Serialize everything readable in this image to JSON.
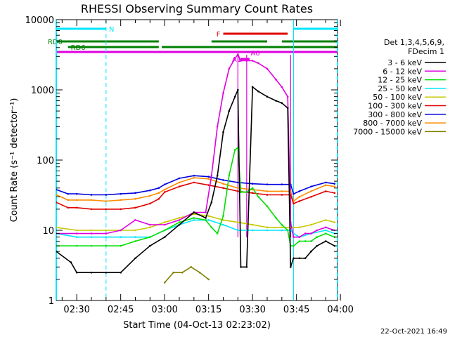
{
  "chart_data": {
    "type": "line",
    "title": "RHESSI Observing Summary Count Rates",
    "xlabel": "Start Time (04-Oct-13 02:23:02)",
    "ylabel": "Count Rate (s⁻¹ detector⁻¹)",
    "yscale": "log",
    "ylim": [
      1,
      10000
    ],
    "xlim": [
      "02:23",
      "03:59"
    ],
    "x_ticks": [
      "02:30",
      "02:45",
      "03:00",
      "03:15",
      "03:30",
      "03:45",
      "04:00"
    ],
    "y_ticks": [
      "1",
      "10",
      "100",
      "1000",
      "10000"
    ],
    "legend_title": [
      "Det 1,3,4,5,6,9,",
      "FDecim 1"
    ],
    "legend_position": "right",
    "footer": "22-Oct-2021 16:49",
    "colors": {
      "night": "#00e5ff",
      "flare": "#e00000",
      "rd0": "#008000",
      "rd6": "#008000",
      "attenuator": "#e000e0"
    },
    "bands": [
      {
        "label": "N",
        "color": "#00e5ff",
        "segments": [
          [
            "02:23",
            "02:40"
          ],
          [
            "03:44",
            "03:59"
          ]
        ]
      },
      {
        "label": "F",
        "color": "#e00000",
        "segments": [
          [
            "03:20",
            "03:42"
          ]
        ]
      },
      {
        "label": "RD0",
        "color": "#008000",
        "segments": [
          [
            "02:23",
            "02:58"
          ],
          [
            "03:16",
            "03:35"
          ],
          [
            "03:40",
            "03:59"
          ]
        ]
      },
      {
        "label": "RD6",
        "color": "#008000",
        "segments": [
          [
            "02:27",
            "02:58"
          ],
          [
            "02:59",
            "03:43"
          ],
          [
            "03:43",
            "03:59"
          ]
        ]
      },
      {
        "label": "A1",
        "color": "#e000e0",
        "segments": [
          [
            "02:23",
            "03:59"
          ]
        ]
      },
      {
        "label": "A0",
        "color": "#e000e0",
        "segments": [
          [
            "03:26",
            "03:29"
          ]
        ]
      }
    ],
    "night_markers": [
      "02:23",
      "02:40",
      "03:44",
      "03:59"
    ],
    "attenuator_markers": [
      "03:25",
      "03:28",
      "03:43"
    ],
    "series": [
      {
        "name": "3 - 6 keV",
        "color": "#000000",
        "x": [
          "02:23",
          "02:28",
          "02:30",
          "02:35",
          "02:40",
          "02:45",
          "02:50",
          "02:55",
          "03:00",
          "03:05",
          "03:10",
          "03:14",
          "03:16",
          "03:18",
          "03:20",
          "03:22",
          "03:24",
          "03:25",
          "03:26",
          "03:28",
          "03:30",
          "03:32",
          "03:35",
          "03:38",
          "03:40",
          "03:42",
          "03:43",
          "03:44",
          "03:46",
          "03:48",
          "03:50",
          "03:52",
          "03:55",
          "03:58"
        ],
        "y": [
          5,
          3.5,
          2.5,
          2.5,
          2.5,
          2.5,
          4,
          6,
          8,
          12,
          18,
          15,
          25,
          60,
          250,
          500,
          800,
          1000,
          3,
          3,
          1100,
          950,
          800,
          700,
          650,
          550,
          3,
          4,
          4,
          4,
          5,
          6,
          7,
          6
        ]
      },
      {
        "name": "6 - 12 keV",
        "color": "#e000e0",
        "x": [
          "02:23",
          "02:30",
          "02:35",
          "02:40",
          "02:45",
          "02:50",
          "02:55",
          "03:00",
          "03:05",
          "03:10",
          "03:14",
          "03:16",
          "03:18",
          "03:20",
          "03:22",
          "03:24",
          "03:25",
          "03:26",
          "03:28",
          "03:30",
          "03:32",
          "03:35",
          "03:38",
          "03:40",
          "03:42",
          "03:43",
          "03:44",
          "03:46",
          "03:48",
          "03:50",
          "03:52",
          "03:55",
          "03:58"
        ],
        "y": [
          9,
          9,
          9,
          9,
          10,
          14,
          12,
          12,
          14,
          18,
          18,
          60,
          300,
          900,
          2000,
          2800,
          3200,
          2600,
          2600,
          2600,
          2400,
          2000,
          1400,
          1100,
          800,
          13,
          8,
          8,
          9,
          9,
          10,
          11,
          10
        ]
      },
      {
        "name": "12 - 25 keV",
        "color": "#00e000",
        "x": [
          "02:23",
          "02:30",
          "02:35",
          "02:40",
          "02:45",
          "02:50",
          "02:55",
          "03:00",
          "03:05",
          "03:10",
          "03:14",
          "03:16",
          "03:18",
          "03:20",
          "03:22",
          "03:24",
          "03:25",
          "03:26",
          "03:28",
          "03:30",
          "03:32",
          "03:35",
          "03:38",
          "03:40",
          "03:42",
          "03:43",
          "03:44",
          "03:46",
          "03:48",
          "03:50",
          "03:52",
          "03:55",
          "03:58"
        ],
        "y": [
          6,
          6,
          6,
          6,
          6,
          7,
          8,
          10,
          13,
          15,
          14,
          11,
          9,
          16,
          60,
          140,
          150,
          35,
          35,
          40,
          30,
          22,
          15,
          12,
          10,
          6,
          6,
          7,
          7,
          7,
          8,
          9,
          8
        ]
      },
      {
        "name": "25 - 50 keV",
        "color": "#00e5ff",
        "x": [
          "02:23",
          "02:30",
          "02:35",
          "02:40",
          "02:45",
          "02:50",
          "02:55",
          "03:00",
          "03:05",
          "03:10",
          "03:15",
          "03:20",
          "03:25",
          "03:26",
          "03:28",
          "03:30",
          "03:35",
          "03:40",
          "03:43",
          "03:44",
          "03:46",
          "03:50",
          "03:55",
          "03:58"
        ],
        "y": [
          9,
          8,
          8,
          8,
          8,
          8,
          8,
          10,
          12,
          14,
          14,
          12,
          10,
          10,
          10,
          10,
          10,
          10,
          10,
          9,
          8,
          9,
          10,
          9
        ]
      },
      {
        "name": "50 - 100 keV",
        "color": "#c8c800",
        "x": [
          "02:23",
          "02:30",
          "02:35",
          "02:40",
          "02:45",
          "02:50",
          "02:55",
          "03:00",
          "03:05",
          "03:10",
          "03:15",
          "03:20",
          "03:25",
          "03:30",
          "03:35",
          "03:40",
          "03:43",
          "03:44",
          "03:46",
          "03:50",
          "03:55",
          "03:58"
        ],
        "y": [
          11,
          10,
          10,
          10,
          10,
          10,
          11,
          13,
          15,
          17,
          16,
          14,
          13,
          12,
          11,
          11,
          11,
          11,
          11,
          12,
          14,
          13
        ]
      },
      {
        "name": "100 - 300 keV",
        "color": "#e00000",
        "x": [
          "02:23",
          "02:27",
          "02:30",
          "02:35",
          "02:40",
          "02:45",
          "02:50",
          "02:55",
          "02:58",
          "03:00",
          "03:05",
          "03:10",
          "03:15",
          "03:20",
          "03:25",
          "03:30",
          "03:35",
          "03:40",
          "03:43",
          "03:44",
          "03:46",
          "03:50",
          "03:55",
          "03:58"
        ],
        "y": [
          25,
          21,
          21,
          20,
          20,
          20,
          21,
          24,
          28,
          35,
          42,
          48,
          44,
          40,
          36,
          34,
          32,
          32,
          32,
          24,
          26,
          30,
          36,
          34
        ]
      },
      {
        "name": "300 - 800 keV",
        "color": "#0000e0",
        "x": [
          "02:23",
          "02:27",
          "02:30",
          "02:35",
          "02:40",
          "02:45",
          "02:50",
          "02:55",
          "02:58",
          "03:00",
          "03:05",
          "03:10",
          "03:15",
          "03:20",
          "03:25",
          "03:30",
          "03:35",
          "03:40",
          "03:43",
          "03:44",
          "03:46",
          "03:50",
          "03:55",
          "03:58"
        ],
        "y": [
          38,
          33,
          33,
          32,
          32,
          33,
          34,
          37,
          40,
          45,
          55,
          60,
          58,
          52,
          48,
          46,
          45,
          45,
          45,
          33,
          36,
          42,
          48,
          46
        ]
      },
      {
        "name": "800 - 7000 keV",
        "color": "#ff8c00",
        "x": [
          "02:23",
          "02:27",
          "02:30",
          "02:35",
          "02:40",
          "02:45",
          "02:50",
          "02:55",
          "02:58",
          "03:00",
          "03:05",
          "03:10",
          "03:15",
          "03:20",
          "03:25",
          "03:30",
          "03:35",
          "03:40",
          "03:43",
          "03:44",
          "03:46",
          "03:50",
          "03:55",
          "03:58"
        ],
        "y": [
          32,
          27,
          27,
          27,
          26,
          27,
          28,
          31,
          34,
          38,
          48,
          56,
          54,
          46,
          40,
          38,
          36,
          36,
          36,
          26,
          30,
          36,
          44,
          42
        ]
      },
      {
        "name": "7000 - 15000 keV",
        "color": "#808000",
        "x": [
          "03:00",
          "03:03",
          "03:06",
          "03:09",
          "03:12",
          "03:15"
        ],
        "y": [
          1.8,
          2.5,
          2.5,
          3,
          2.5,
          2
        ]
      }
    ]
  }
}
